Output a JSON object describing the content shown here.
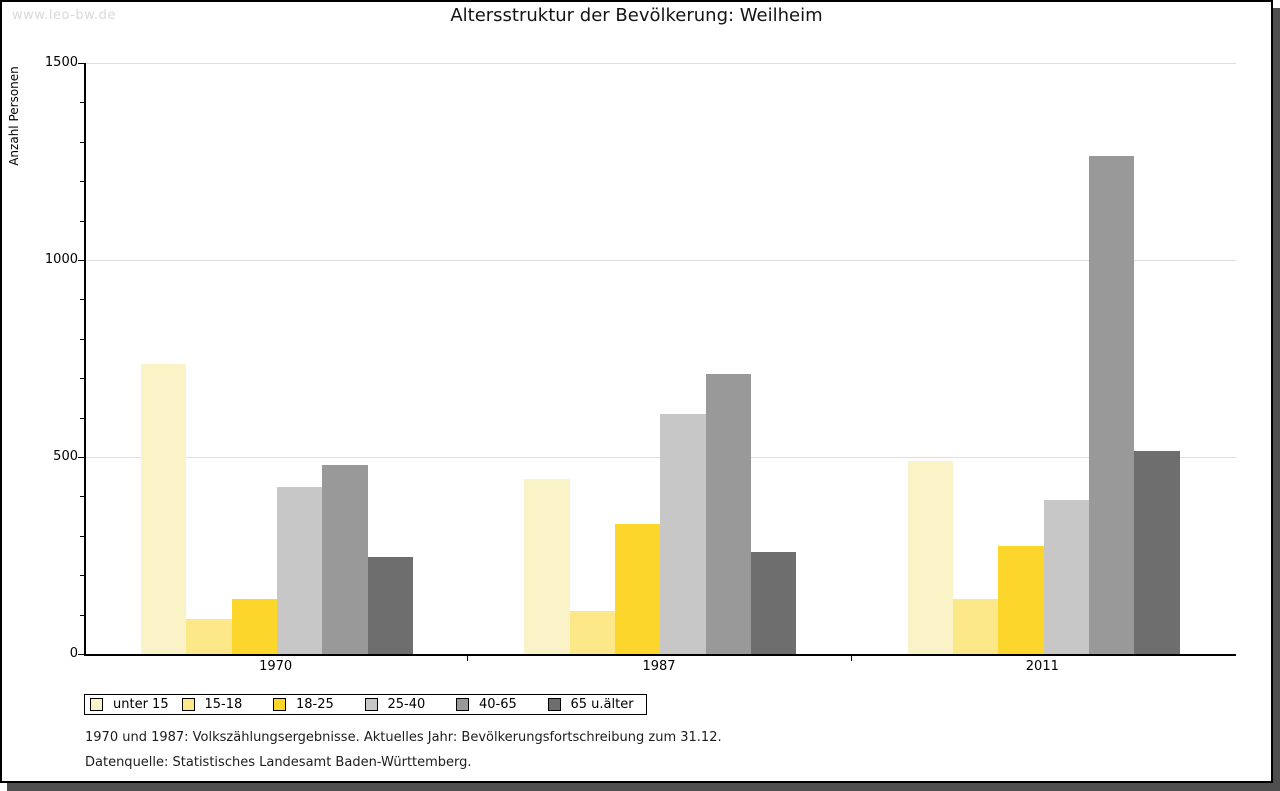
{
  "watermark": "www.leo-bw.de",
  "title": "Altersstruktur der Bevölkerung: Weilheim",
  "footer": {
    "line1": "1970 und 1987: Volkszählungsergebnisse. Aktuelles Jahr: Bevölkerungsfortschreibung zum 31.12.",
    "line2": "Datenquelle: Statistisches Landesamt Baden-Württemberg."
  },
  "chart_data": {
    "type": "bar",
    "title": "Altersstruktur der Bevölkerung: Weilheim",
    "ylabel": "Anzahl Personen",
    "xlabel": "",
    "categories": [
      "1970",
      "1987",
      "2011"
    ],
    "series": [
      {
        "name": "unter 15",
        "color": "#FAF3C8",
        "values": [
          735,
          445,
          490
        ]
      },
      {
        "name": "15-18",
        "color": "#FCE789",
        "values": [
          90,
          110,
          140
        ]
      },
      {
        "name": "18-25",
        "color": "#FCD62B",
        "values": [
          140,
          330,
          275
        ]
      },
      {
        "name": "25-40",
        "color": "#C7C7C7",
        "values": [
          425,
          610,
          390
        ]
      },
      {
        "name": "40-65",
        "color": "#999999",
        "values": [
          480,
          710,
          1265
        ]
      },
      {
        "name": "65 u.älter",
        "color": "#6E6E6E",
        "values": [
          245,
          260,
          515
        ]
      }
    ],
    "ylim": [
      0,
      1500
    ],
    "y_ticks": [
      0,
      500,
      1000,
      1500
    ],
    "y_minor_step": 100,
    "grid": "horizontal",
    "legend_position": "bottom",
    "axis_color": "#000000",
    "gridline_color": "#dedede"
  }
}
